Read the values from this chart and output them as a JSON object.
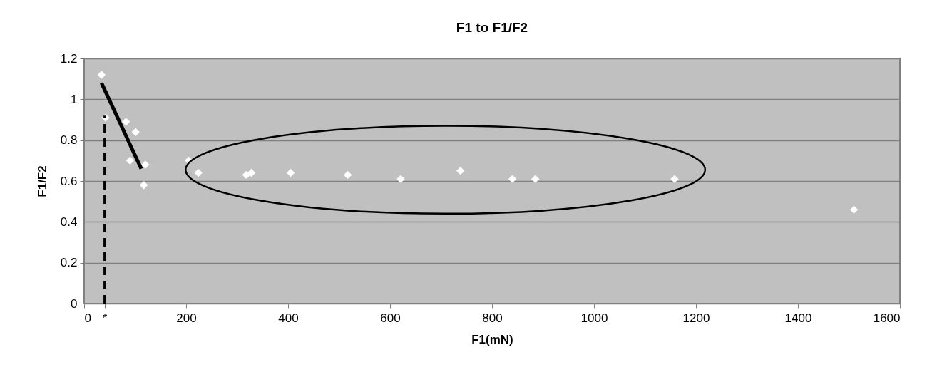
{
  "chart_data": {
    "type": "scatter",
    "title": "F1 to F1/F2",
    "xlabel": "F1(mN)",
    "ylabel": "F1/F2",
    "xlim": [
      0,
      1600
    ],
    "xticks": [
      0,
      {
        "value": 40,
        "label": "*"
      },
      200,
      400,
      600,
      800,
      1000,
      1200,
      1400,
      1600
    ],
    "ylim": [
      0,
      1.2
    ],
    "yticks": [
      0,
      0.2,
      0.4,
      0.6,
      0.8,
      1,
      1.2
    ],
    "grid": "y",
    "marker": "diamond",
    "series": [
      {
        "color": "#ffffff",
        "x": [
          34,
          42,
          82,
          101,
          90,
          120,
          117,
          205,
          224,
          318,
          328,
          405,
          517,
          621,
          738,
          840,
          885,
          1158,
          1510
        ],
        "values": [
          1.12,
          0.91,
          0.89,
          0.84,
          0.7,
          0.68,
          0.58,
          0.7,
          0.64,
          0.63,
          0.64,
          0.64,
          0.63,
          0.61,
          0.65,
          0.61,
          0.61,
          0.61,
          0.46
        ]
      },
      {
        "type": "line",
        "color": "#000000",
        "line_style": "solid",
        "marker": "none",
        "x": [
          34,
          112
        ],
        "values": [
          1.08,
          0.66
        ]
      },
      {
        "type": "line",
        "color": "#000000",
        "line_style": "dashed",
        "marker": "none",
        "x": [
          40,
          40
        ],
        "values": [
          0,
          0.92
        ]
      }
    ]
  }
}
